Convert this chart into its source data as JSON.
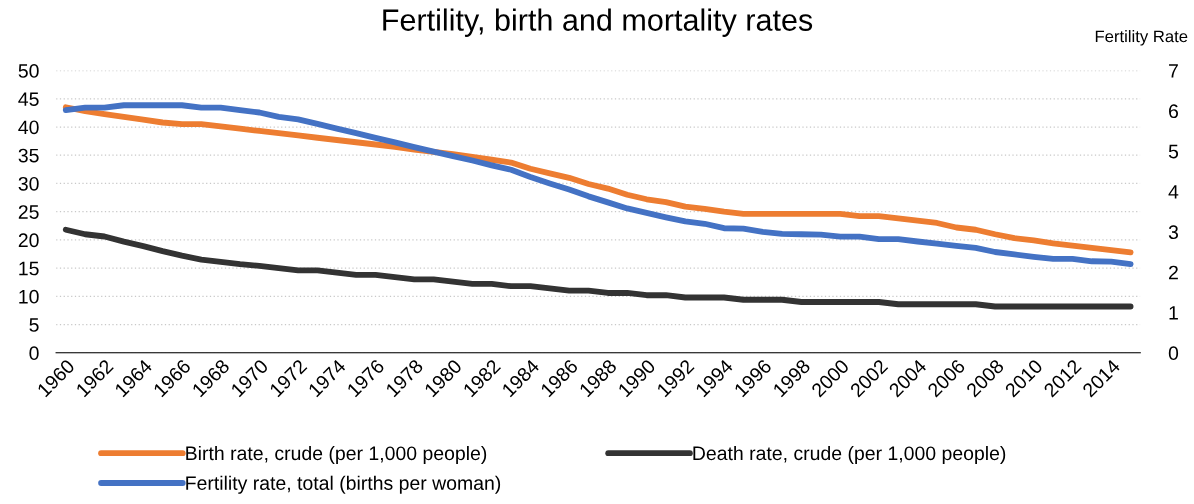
{
  "chart_data": {
    "type": "line",
    "title": "Fertility, birth and mortality rates",
    "y2label": "Fertility Rate",
    "x": [
      1960,
      1961,
      1962,
      1963,
      1964,
      1965,
      1966,
      1967,
      1968,
      1969,
      1970,
      1971,
      1972,
      1973,
      1974,
      1975,
      1976,
      1977,
      1978,
      1979,
      1980,
      1981,
      1982,
      1983,
      1984,
      1985,
      1986,
      1987,
      1988,
      1989,
      1990,
      1991,
      1992,
      1993,
      1994,
      1995,
      1996,
      1997,
      1998,
      1999,
      2000,
      2001,
      2002,
      2003,
      2004,
      2005,
      2006,
      2007,
      2008,
      2009,
      2010,
      2011,
      2012,
      2013,
      2014,
      2015
    ],
    "series": [
      {
        "name": "Birth rate, crude (per 1,000 people)",
        "color": "#ed7d31",
        "values": [
          43.5,
          42.8,
          42.3,
          41.8,
          41.3,
          40.8,
          40.5,
          40.5,
          40.1,
          39.7,
          39.3,
          38.9,
          38.5,
          38.1,
          37.7,
          37.3,
          36.9,
          36.5,
          36.0,
          35.6,
          35.2,
          34.7,
          34.2,
          33.7,
          32.6,
          31.8,
          31.0,
          29.9,
          29.1,
          28.0,
          27.2,
          26.7,
          25.9,
          25.5,
          25.0,
          24.6,
          24.6,
          24.6,
          24.6,
          24.6,
          24.6,
          24.2,
          24.2,
          23.8,
          23.4,
          23.0,
          22.2,
          21.8,
          21.0,
          20.3,
          19.9,
          19.4,
          19.0,
          18.6,
          18.2,
          17.8
        ]
      },
      {
        "name": "Death rate, crude (per 1,000 people)",
        "color": "#333333",
        "values": [
          21.8,
          21.0,
          20.6,
          19.7,
          18.9,
          18.0,
          17.2,
          16.5,
          16.1,
          15.7,
          15.4,
          15.0,
          14.6,
          14.6,
          14.2,
          13.8,
          13.8,
          13.4,
          13.0,
          13.0,
          12.6,
          12.2,
          12.2,
          11.8,
          11.8,
          11.4,
          11.0,
          11.0,
          10.6,
          10.6,
          10.2,
          10.2,
          9.8,
          9.8,
          9.8,
          9.4,
          9.4,
          9.4,
          9.0,
          9.0,
          9.0,
          9.0,
          9.0,
          8.6,
          8.6,
          8.6,
          8.6,
          8.6,
          8.2,
          8.2,
          8.2,
          8.2,
          8.2,
          8.2,
          8.2,
          8.2
        ]
      },
      {
        "name": "Fertility rate, total (births per woman)",
        "color": "#4472c4",
        "axis": "y2",
        "values": [
          6.02,
          6.08,
          6.08,
          6.14,
          6.14,
          6.14,
          6.14,
          6.08,
          6.08,
          6.02,
          5.96,
          5.85,
          5.79,
          5.68,
          5.56,
          5.45,
          5.33,
          5.22,
          5.1,
          4.99,
          4.88,
          4.77,
          4.65,
          4.54,
          4.36,
          4.2,
          4.05,
          3.88,
          3.73,
          3.58,
          3.47,
          3.36,
          3.26,
          3.2,
          3.09,
          3.08,
          3.0,
          2.95,
          2.94,
          2.93,
          2.88,
          2.88,
          2.82,
          2.82,
          2.76,
          2.71,
          2.65,
          2.6,
          2.5,
          2.44,
          2.38,
          2.33,
          2.33,
          2.27,
          2.26,
          2.2
        ]
      }
    ],
    "xlim": [
      1959.5,
      2015.5
    ],
    "xticks": [
      1960,
      1962,
      1964,
      1966,
      1968,
      1970,
      1972,
      1974,
      1976,
      1978,
      1980,
      1982,
      1984,
      1986,
      1988,
      1990,
      1992,
      1994,
      1996,
      1998,
      2000,
      2002,
      2004,
      2006,
      2008,
      2010,
      2012,
      2014
    ],
    "ylim": [
      0,
      50
    ],
    "yticks": [
      0,
      5,
      10,
      15,
      20,
      25,
      30,
      35,
      40,
      45,
      50
    ],
    "y2lim": [
      0,
      7
    ],
    "y2ticks": [
      0,
      1,
      2,
      3,
      4,
      5,
      6,
      7
    ],
    "grid": "y",
    "legend": "bottom",
    "marker": "none",
    "line_style": "solid"
  }
}
